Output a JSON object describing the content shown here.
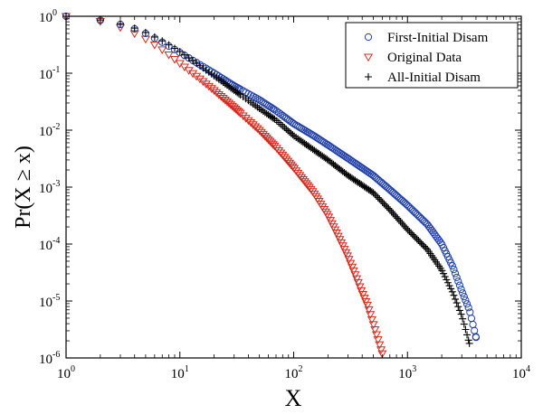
{
  "chart_data": {
    "type": "scatter",
    "xscale": "log",
    "yscale": "log",
    "xlim": [
      1,
      10000
    ],
    "ylim": [
      1e-06,
      1
    ],
    "xlabel": "X",
    "ylabel": "Pr(X ≥ x)",
    "x_ticks": [
      {
        "value": 1,
        "base": "10",
        "exp": "0"
      },
      {
        "value": 10,
        "base": "10",
        "exp": "1"
      },
      {
        "value": 100,
        "base": "10",
        "exp": "2"
      },
      {
        "value": 1000,
        "base": "10",
        "exp": "3"
      },
      {
        "value": 10000,
        "base": "10",
        "exp": "4"
      }
    ],
    "y_ticks": [
      {
        "value": 1,
        "base": "10",
        "exp": "0"
      },
      {
        "value": 0.1,
        "base": "10",
        "exp": "-1"
      },
      {
        "value": 0.01,
        "base": "10",
        "exp": "-2"
      },
      {
        "value": 0.001,
        "base": "10",
        "exp": "-3"
      },
      {
        "value": 0.0001,
        "base": "10",
        "exp": "-4"
      },
      {
        "value": 1e-05,
        "base": "10",
        "exp": "-5"
      },
      {
        "value": 1e-06,
        "base": "10",
        "exp": "-6"
      }
    ],
    "legend_position": "top-right",
    "series": [
      {
        "name": "First-Initial Disam",
        "marker": "circle",
        "color": "#1f3fa8",
        "curve": [
          [
            1,
            1
          ],
          [
            2,
            0.85
          ],
          [
            3,
            0.72
          ],
          [
            4,
            0.6
          ],
          [
            5,
            0.5
          ],
          [
            7,
            0.35
          ],
          [
            10,
            0.23
          ],
          [
            20,
            0.1
          ],
          [
            30,
            0.06
          ],
          [
            50,
            0.034
          ],
          [
            70,
            0.022
          ],
          [
            100,
            0.013
          ],
          [
            150,
            0.008
          ],
          [
            200,
            0.0055
          ],
          [
            300,
            0.0032
          ],
          [
            500,
            0.0016
          ],
          [
            700,
            0.0009
          ],
          [
            1000,
            0.00048
          ],
          [
            1500,
            0.00022
          ],
          [
            2000,
            0.0001
          ],
          [
            2500,
            4e-05
          ],
          [
            3000,
            1.5e-05
          ],
          [
            3500,
            7e-06
          ],
          [
            4000,
            2.3e-06
          ]
        ]
      },
      {
        "name": "Original Data",
        "marker": "triangle-down",
        "color": "#d42a1e",
        "curve": [
          [
            1,
            1
          ],
          [
            2,
            0.82
          ],
          [
            3,
            0.64
          ],
          [
            4,
            0.5
          ],
          [
            5,
            0.4
          ],
          [
            7,
            0.26
          ],
          [
            10,
            0.15
          ],
          [
            15,
            0.08
          ],
          [
            20,
            0.05
          ],
          [
            30,
            0.025
          ],
          [
            50,
            0.01
          ],
          [
            70,
            0.005
          ],
          [
            100,
            0.0022
          ],
          [
            150,
            0.0008
          ],
          [
            200,
            0.00032
          ],
          [
            250,
            0.00013
          ],
          [
            300,
            6e-05
          ],
          [
            350,
            2.8e-05
          ],
          [
            400,
            1.4e-05
          ],
          [
            450,
            8e-06
          ],
          [
            500,
            4e-06
          ],
          [
            600,
            1.2e-06
          ]
        ]
      },
      {
        "name": "All-Initial Disam",
        "marker": "plus",
        "color": "#000000",
        "curve": [
          [
            1,
            1
          ],
          [
            2,
            0.86
          ],
          [
            3,
            0.74
          ],
          [
            4,
            0.62
          ],
          [
            5,
            0.52
          ],
          [
            7,
            0.37
          ],
          [
            10,
            0.24
          ],
          [
            20,
            0.09
          ],
          [
            30,
            0.05
          ],
          [
            50,
            0.024
          ],
          [
            70,
            0.015
          ],
          [
            100,
            0.008
          ],
          [
            150,
            0.0045
          ],
          [
            200,
            0.003
          ],
          [
            300,
            0.0016
          ],
          [
            500,
            0.0008
          ],
          [
            700,
            0.0004
          ],
          [
            1000,
            0.00018
          ],
          [
            1500,
            8e-05
          ],
          [
            2000,
            3.5e-05
          ],
          [
            2500,
            1.4e-05
          ],
          [
            3000,
            5.5e-06
          ],
          [
            3500,
            1.8e-06
          ]
        ]
      }
    ]
  }
}
